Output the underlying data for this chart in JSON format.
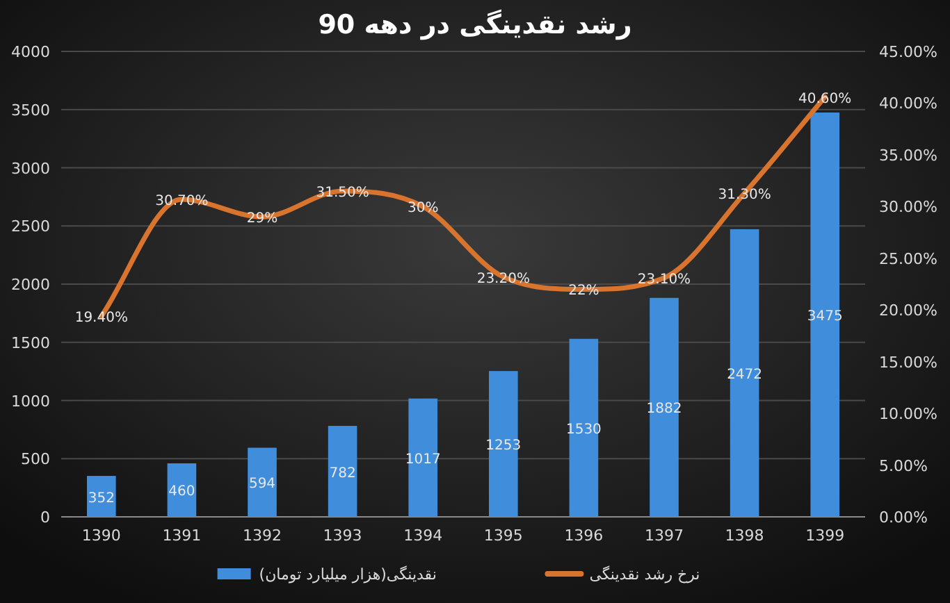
{
  "chart_data": {
    "type": "bar",
    "title": "رشد نقدینگی در دهه 90",
    "categories": [
      "1390",
      "1391",
      "1392",
      "1393",
      "1394",
      "1395",
      "1396",
      "1397",
      "1398",
      "1399"
    ],
    "series": [
      {
        "name": "نقدینگی(هزار میلیارد تومان)",
        "color": "#3f8ddb",
        "values": [
          352,
          460,
          594,
          782,
          1017,
          1253,
          1530,
          1882,
          2472,
          3475
        ],
        "value_labels": [
          "352",
          "460",
          "594",
          "782",
          "1017",
          "1253",
          "1530",
          "1882",
          "2472",
          "3475"
        ]
      },
      {
        "name": "نرخ رشد نقدینگی",
        "type": "line",
        "axis": "y2",
        "color": "#d8742e",
        "values": [
          19.4,
          30.7,
          29,
          31.5,
          30,
          23.2,
          22,
          23.1,
          31.3,
          40.6
        ],
        "value_labels": [
          "19.40%",
          "30.70%",
          "29%",
          "31.50%",
          "30%",
          "23.20%",
          "22%",
          "23.10%",
          "31.30%",
          "40.60%"
        ]
      }
    ],
    "ylim": [
      0,
      4000
    ],
    "yticks": [
      0,
      500,
      1000,
      1500,
      2000,
      2500,
      3000,
      3500,
      4000
    ],
    "y2lim": [
      0,
      45
    ],
    "y2ticks": [
      {
        "value": 0,
        "label": "0.00%"
      },
      {
        "value": 5,
        "label": "5.00%"
      },
      {
        "value": 10,
        "label": "10.00%"
      },
      {
        "value": 15,
        "label": "15.00%"
      },
      {
        "value": 20,
        "label": "20.00%"
      },
      {
        "value": 25,
        "label": "25.00%"
      },
      {
        "value": 30,
        "label": "30.00%"
      },
      {
        "value": 35,
        "label": "35.00%"
      },
      {
        "value": 40,
        "label": "40.00%"
      },
      {
        "value": 45,
        "label": "45.00%"
      }
    ],
    "grid": "y",
    "legend": "bottom",
    "marker": "none",
    "line_style": "solid"
  }
}
